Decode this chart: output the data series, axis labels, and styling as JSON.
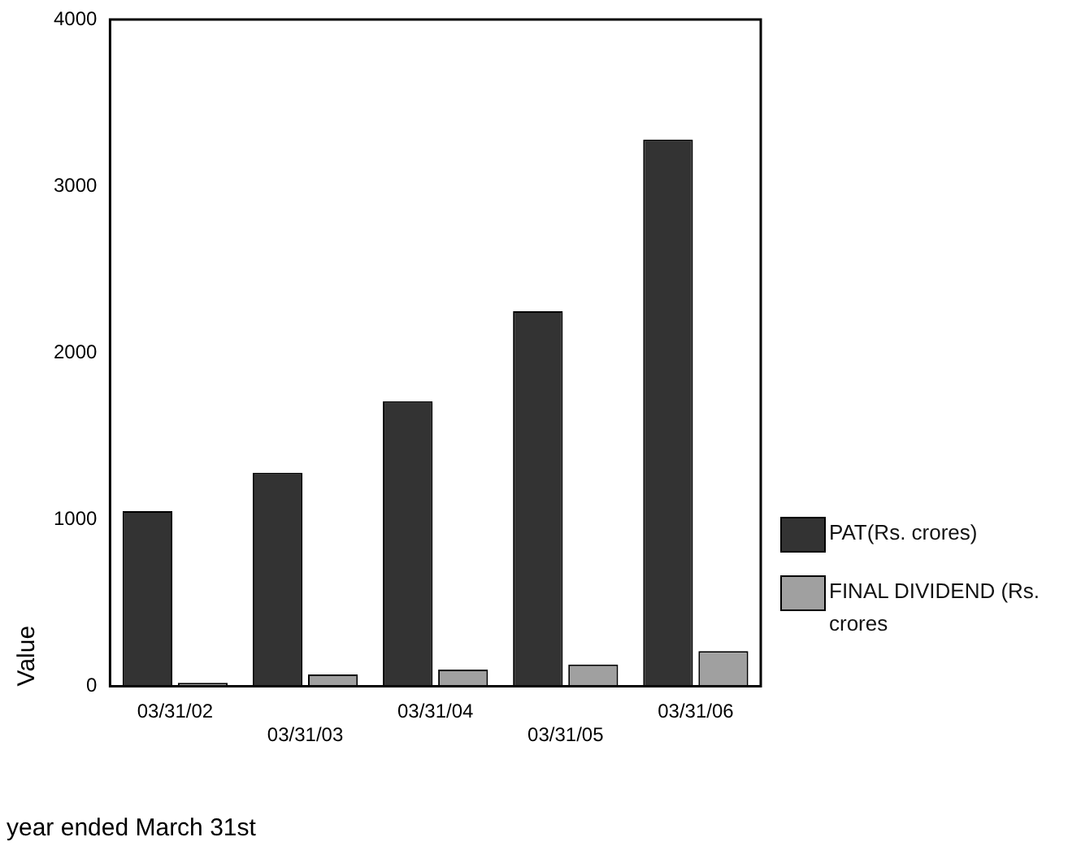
{
  "chart_data": {
    "type": "bar",
    "xlabel": "year ended March 31st",
    "ylabel": "Value",
    "categories": [
      "03/31/02",
      "03/31/03",
      "03/31/04",
      "03/31/05",
      "03/31/06"
    ],
    "series": [
      {
        "name": "PAT(Rs. crores)",
        "color": "#333333",
        "values": [
          1050,
          1280,
          1710,
          2250,
          3280
        ]
      },
      {
        "name": "FINAL DIVIDEND (Rs. crores",
        "color": "#a0a0a0",
        "values": [
          20,
          70,
          100,
          130,
          210
        ]
      }
    ],
    "ylim": [
      0,
      4000
    ],
    "yticks": [
      0,
      1000,
      2000,
      3000,
      4000
    ],
    "grid": false,
    "legend": "right"
  }
}
